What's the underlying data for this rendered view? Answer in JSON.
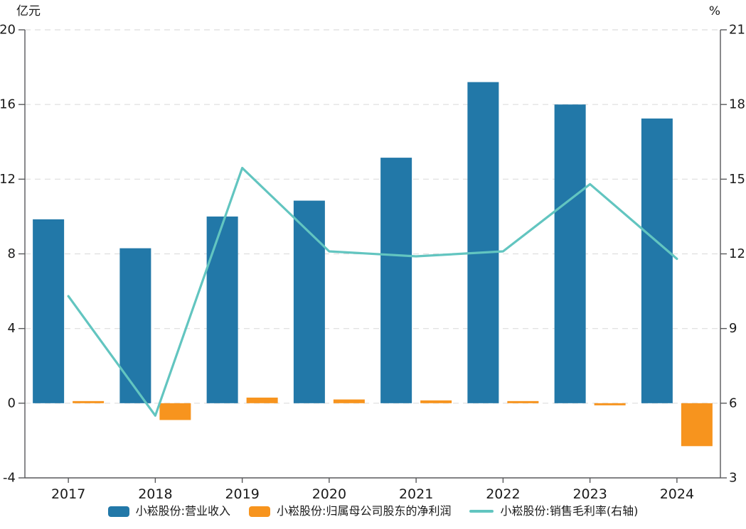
{
  "chart_data": {
    "type": "combo-bar-line",
    "categories": [
      "2017",
      "2018",
      "2019",
      "2020",
      "2021",
      "2022",
      "2023",
      "2024"
    ],
    "series": [
      {
        "name": "小崧股份:营业收入",
        "type": "bar",
        "axis": "left",
        "color": "#2278a8",
        "values": [
          9.85,
          8.3,
          10.0,
          10.85,
          13.15,
          17.2,
          16.0,
          15.25
        ]
      },
      {
        "name": "小崧股份:归属母公司股东的净利润",
        "type": "bar",
        "axis": "left",
        "color": "#f7941e",
        "values": [
          0.08,
          -0.9,
          0.3,
          0.2,
          0.15,
          0.08,
          -0.04,
          -2.3
        ]
      },
      {
        "name": "小崧股份:销售毛利率(右轴)",
        "type": "line",
        "axis": "right",
        "color": "#62c5c0",
        "values": [
          10.3,
          5.5,
          15.45,
          12.1,
          11.9,
          12.1,
          14.8,
          11.8
        ]
      }
    ],
    "left_axis": {
      "unit": "亿元",
      "min": -4,
      "max": 20,
      "ticks": [
        20,
        16,
        12,
        8,
        4,
        0,
        -4
      ]
    },
    "right_axis": {
      "unit": "%",
      "min": 3,
      "max": 21,
      "ticks": [
        21,
        18,
        15,
        12,
        9,
        6,
        3
      ]
    },
    "grid": {
      "horizontal": true,
      "style": "dashed",
      "color": "#dedede"
    },
    "legend_position": "bottom",
    "title": ""
  }
}
